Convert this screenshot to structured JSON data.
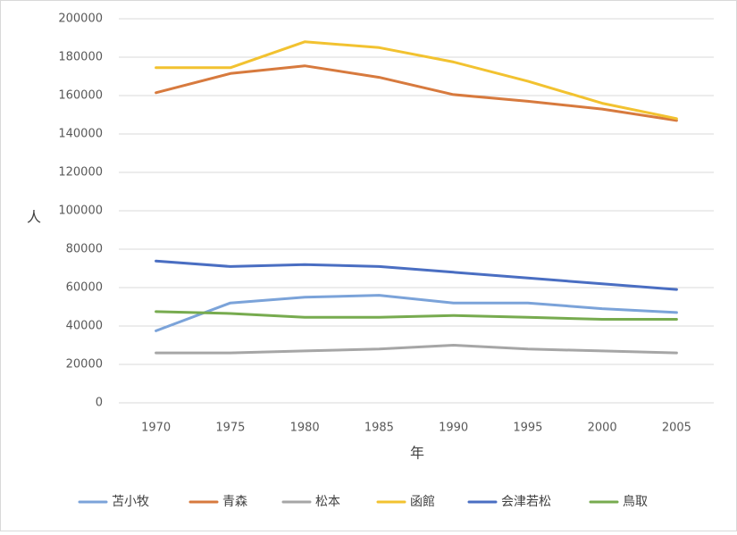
{
  "chart_data": {
    "type": "line",
    "title": "",
    "xlabel": "年",
    "ylabel": "人",
    "x": [
      "1970",
      "1975",
      "1980",
      "1985",
      "1990",
      "1995",
      "2000",
      "2005"
    ],
    "ylim": [
      0,
      200000
    ],
    "y_ticks": [
      "0",
      "20000",
      "40000",
      "60000",
      "80000",
      "100000",
      "120000",
      "140000",
      "160000",
      "180000",
      "200000"
    ],
    "grid": true,
    "legend_position": "bottom",
    "series": [
      {
        "name": "苫小牧",
        "color": "#7ba3d9",
        "values": [
          37500,
          52000,
          55000,
          56000,
          52000,
          52000,
          49000,
          47000
        ]
      },
      {
        "name": "青森",
        "color": "#d77a3e",
        "values": [
          161500,
          171500,
          175500,
          169500,
          160500,
          157000,
          153000,
          147000
        ]
      },
      {
        "name": "松本",
        "color": "#a6a6a6",
        "values": [
          26000,
          26000,
          27000,
          28000,
          30000,
          28000,
          27000,
          26000
        ]
      },
      {
        "name": "函館",
        "color": "#f2c230",
        "values": [
          174500,
          174500,
          188000,
          185000,
          177500,
          167500,
          156000,
          148000
        ]
      },
      {
        "name": "会津若松",
        "color": "#4a6ec2",
        "values": [
          73800,
          71000,
          72000,
          71000,
          68000,
          65000,
          62000,
          59000
        ]
      },
      {
        "name": "鳥取",
        "color": "#77ab4f",
        "values": [
          47500,
          46500,
          44500,
          44500,
          45500,
          44500,
          43500,
          43500
        ]
      }
    ]
  }
}
